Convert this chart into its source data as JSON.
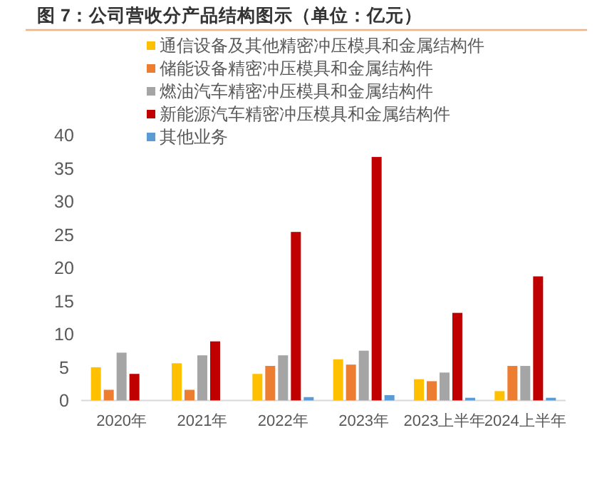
{
  "chart_data": {
    "type": "bar",
    "title": "图 7：公司营收分产品结构图示（单位：亿元）",
    "categories": [
      "2020年",
      "2021年",
      "2022年",
      "2023年",
      "2023上半年",
      "2024上半年"
    ],
    "series": [
      {
        "name": "通信设备及其他精密冲压模具和金属结构件",
        "color": "#ffc000",
        "values": [
          5.0,
          5.6,
          4.0,
          6.2,
          3.2,
          1.4
        ]
      },
      {
        "name": "储能设备精密冲压模具和金属结构件",
        "color": "#ed7d31",
        "values": [
          1.6,
          1.6,
          5.2,
          5.4,
          2.9,
          5.2
        ]
      },
      {
        "name": "燃油汽车精密冲压模具和金属结构件",
        "color": "#a5a5a5",
        "values": [
          7.2,
          6.8,
          6.8,
          7.5,
          4.2,
          5.2
        ]
      },
      {
        "name": "新能源汽车精密冲压模具和金属结构件",
        "color": "#c00000",
        "values": [
          4.0,
          8.9,
          25.4,
          36.7,
          13.2,
          18.7
        ]
      },
      {
        "name": "其他业务",
        "color": "#5b9bd5",
        "values": [
          0,
          0,
          0.5,
          0.8,
          0.4,
          0.4
        ]
      }
    ],
    "ylim": [
      0,
      40
    ],
    "yticks": [
      0,
      5,
      10,
      15,
      20,
      25,
      30,
      35,
      40
    ],
    "grid": false,
    "legend": "top"
  }
}
